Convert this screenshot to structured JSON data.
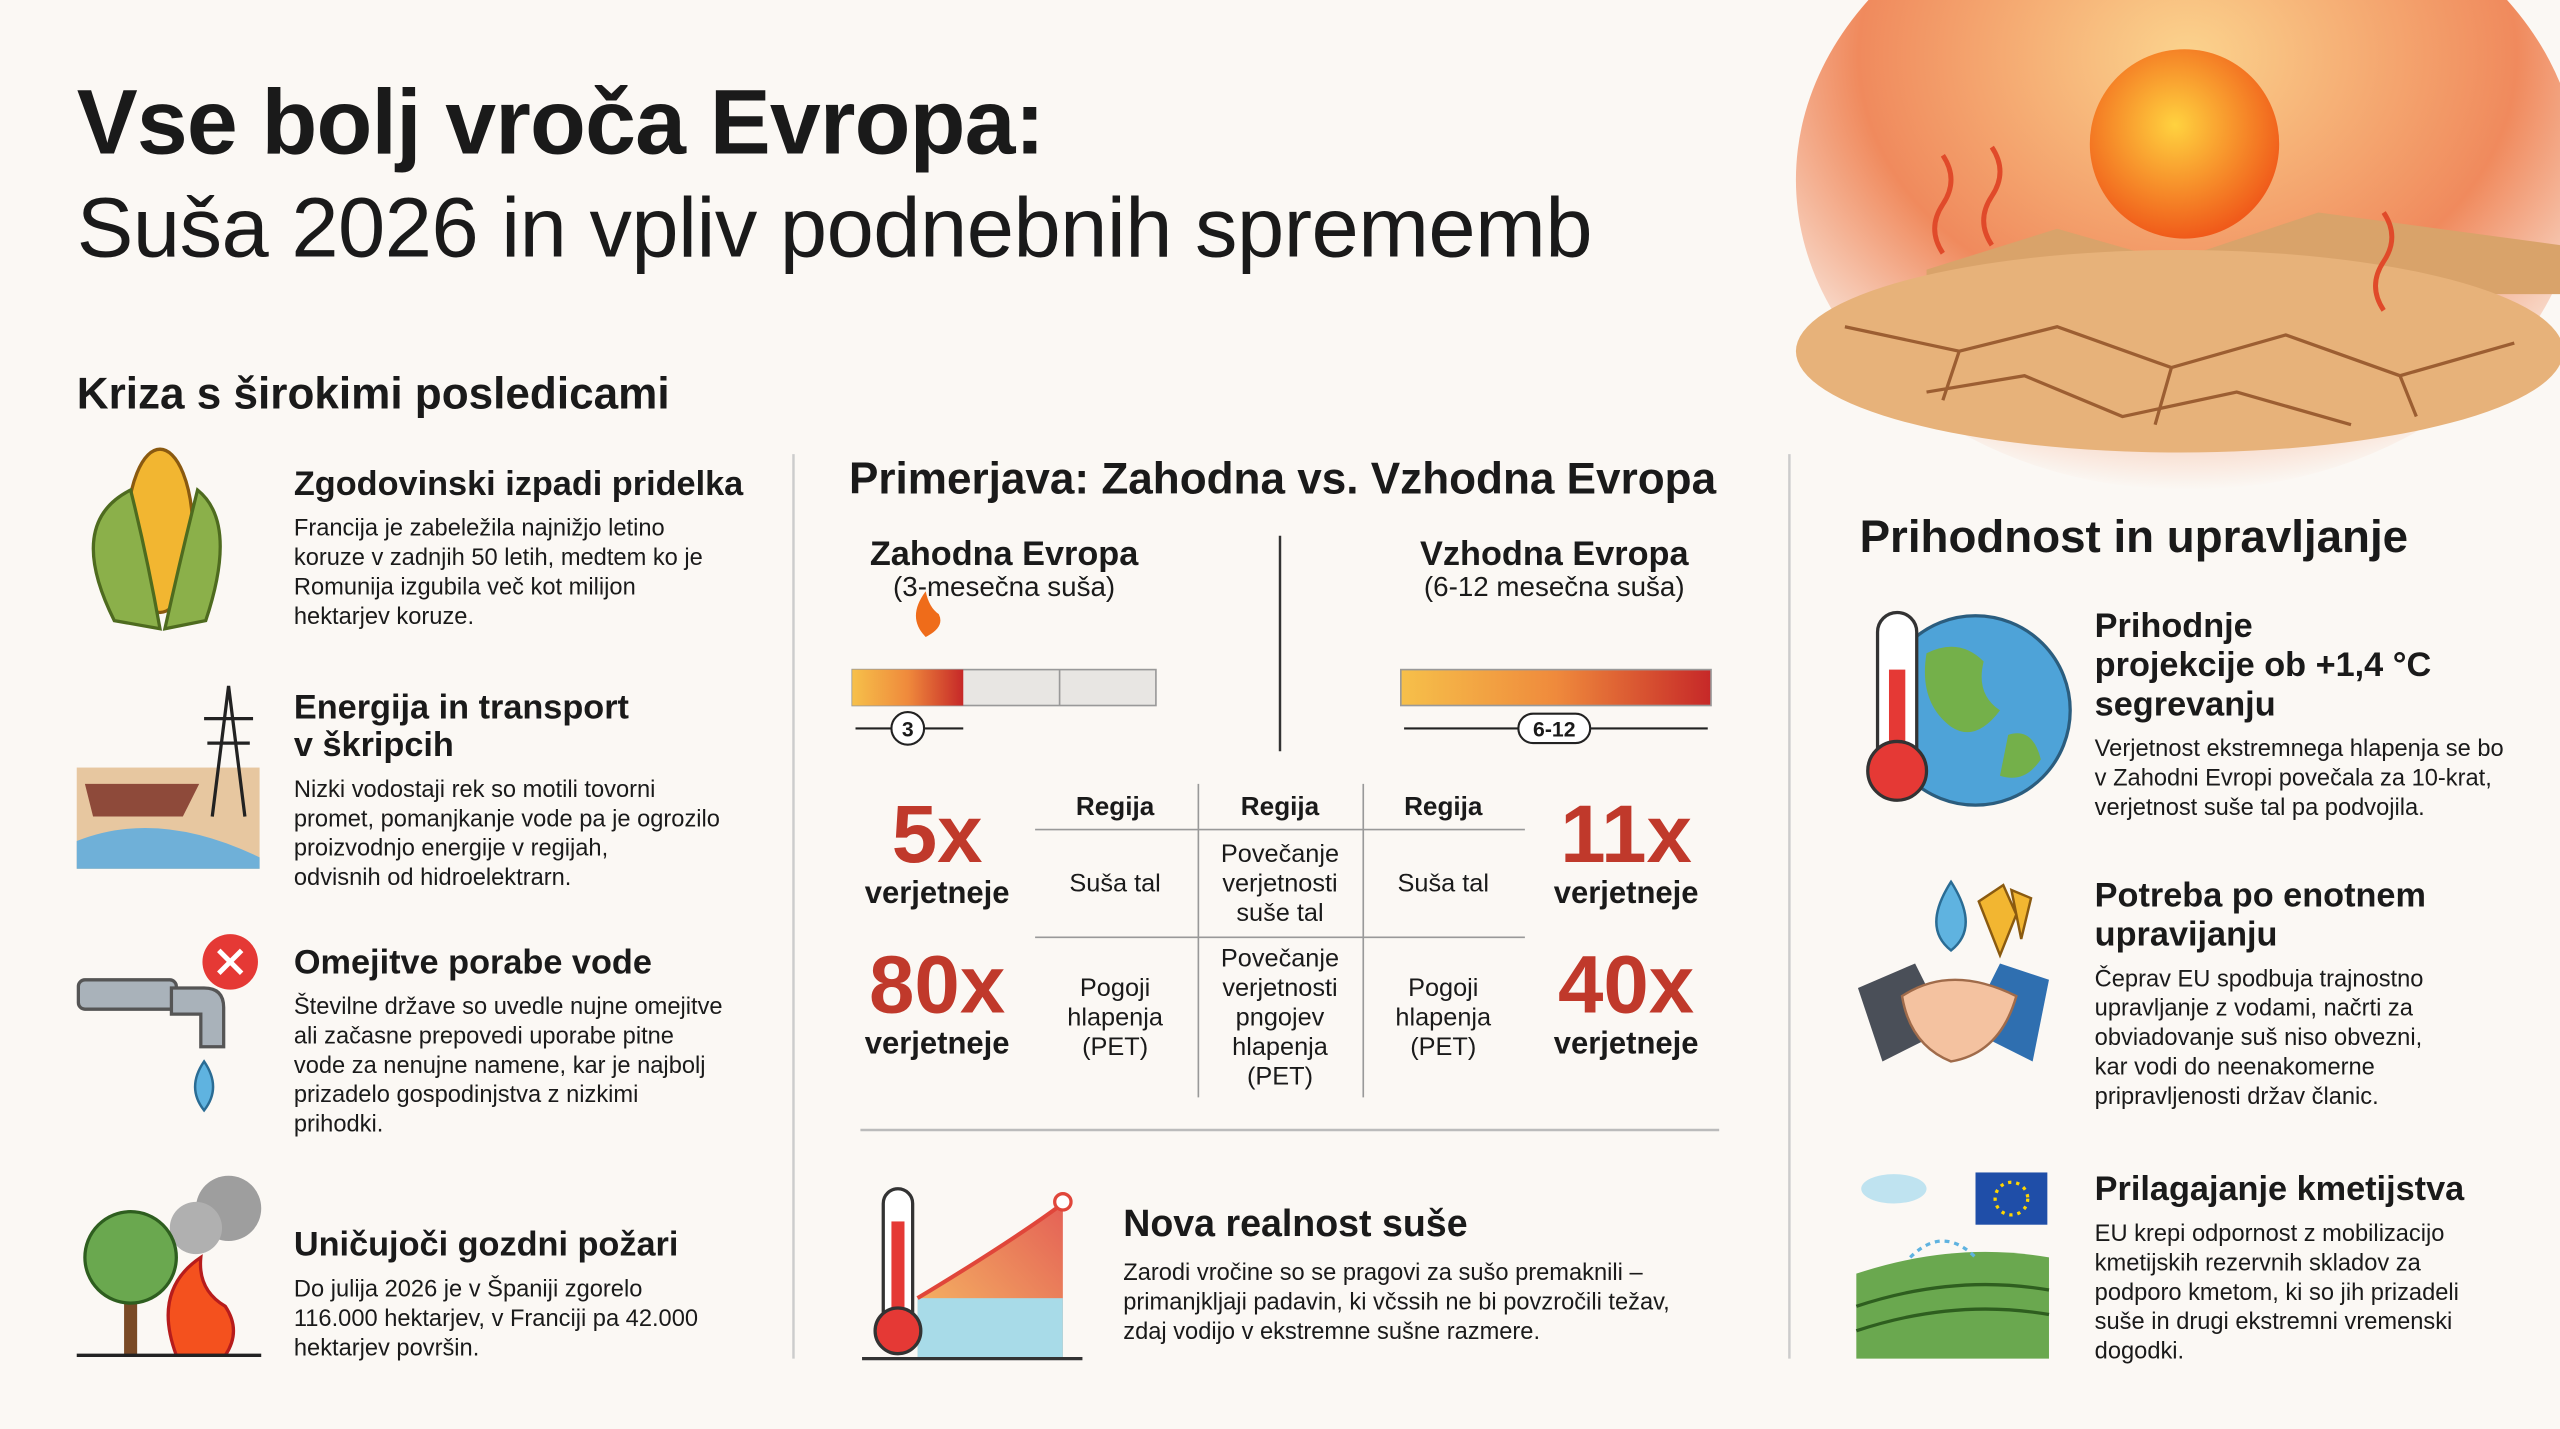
{
  "header": {
    "title": "Vse bolj vroča Evropa:",
    "subtitle": "Suša 2026 in vpliv podnebnih sprememb"
  },
  "left": {
    "heading": "Kriza s širokimi posledicami",
    "items": [
      {
        "title": [
          "Zgodovinski izpadi pridelka"
        ],
        "text": [
          "Francija je zabeležila najnižjo letino",
          "koruze v zadnjih 50 letih, medtem ko je",
          "Romunija izgubila več kot milijon",
          "hektarjev koruze."
        ]
      },
      {
        "title": [
          "Energija in transport",
          "v škripcih"
        ],
        "text": [
          "Nizki vodostaji rek so motili tovorni",
          "promet, pomanjkanje vode pa je ogrozilo",
          "proizvodnjo energije v regijah,",
          "odvisnih od hidroelektrarn."
        ]
      },
      {
        "title": [
          "Omejitve porabe vode"
        ],
        "text": [
          "Številne države so uvedle nujne omejitve",
          "ali začasne prepovedi uporabe pitne",
          "vode za nenujne namene, kar je najbolj",
          "prizadelo gospodinjstva z nizkimi",
          "prihodki."
        ]
      },
      {
        "title": [
          "Uničujoči gozdni požari"
        ],
        "text": [
          "Do julija 2026 je v Španiji zgorelo",
          "116.000 hektarjev, v Franciji pa 42.000",
          "hektarjev površin."
        ]
      }
    ]
  },
  "middle": {
    "heading": "Primerjava: Zahodna vs. Vzhodna Evropa",
    "west": {
      "name": "Zahodna Evropa",
      "note": "(3-mesečna suša)",
      "bar_label": "3"
    },
    "east": {
      "name": "Vzhodna Evropa",
      "note": "(6-12 mesečna suša)",
      "bar_label": "6-12"
    },
    "table": {
      "headers": [
        "Regija",
        "Regija",
        "Regija"
      ],
      "rows": [
        [
          [
            "Suša tal"
          ],
          [
            "Povečanje",
            "verjetnosti",
            "suše tal"
          ],
          [
            "Suša tal"
          ]
        ],
        [
          [
            "Pogoji",
            "hlapenja",
            "(PET)"
          ],
          [
            "Povečanje",
            "verjetnosti",
            "pngojev",
            "hlapenja",
            "(PET)"
          ],
          [
            "Pogoji",
            "hlapenja",
            "(PET)"
          ]
        ]
      ]
    },
    "stats_west": [
      {
        "value": "5x",
        "label": "verjetneje"
      },
      {
        "value": "80x",
        "label": "verjetneje"
      }
    ],
    "stats_east": [
      {
        "value": "11x",
        "label": "verjetneje"
      },
      {
        "value": "40x",
        "label": "verjetneje"
      }
    ],
    "bottom": {
      "title": "Nova realnost suše",
      "text": [
        "Zarodi vročine so se pragovi za sušo premaknili –",
        "primanjkljaji padavin, ki včssih ne bi povzročili težav,",
        "zdaj vodijo v ekstremne sušne razmere."
      ]
    }
  },
  "right": {
    "heading": "Prihodnost in upravljanje",
    "items": [
      {
        "title": [
          "Prihodnje",
          "projekcije ob +1,4 °C",
          "segrevanju"
        ],
        "text": [
          "Verjetnost ekstremnega hlapenja se bo",
          "v Zahodni Evropi povečala za 10-krat,",
          "verjetnost suše tal pa podvojila."
        ]
      },
      {
        "title": [
          "Potreba po enotnem",
          "upravijanju"
        ],
        "text": [
          "Čeprav EU spodbuja trajnostno",
          "upravljanje z vodami, načrti za",
          "obviadovanje suš niso obvezni,",
          "kar vodi do neenakomerne",
          "pripravljenosti držav članic."
        ]
      },
      {
        "title": [
          "Prilagajanje kmetijstva"
        ],
        "text": [
          "EU krepi odpornost z mobilizacijo",
          "kmetijskih rezervnih skladov za",
          "podporo kmetom, ki so jih prizadeli",
          "suše in drugi ekstremni vremenski",
          "dogodki."
        ]
      }
    ]
  }
}
